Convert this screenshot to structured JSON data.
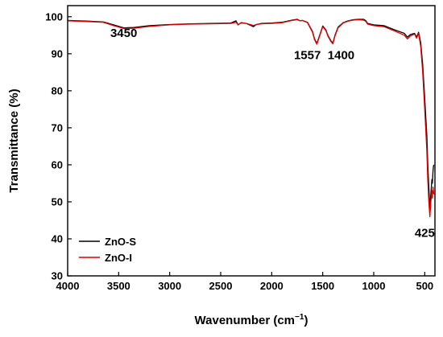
{
  "chart_data": {
    "type": "line",
    "xlabel": "Wavenumber (cm",
    "xlabel_sup": "−1",
    "xlabel_close": ")",
    "ylabel": "Transmittance (%)",
    "xlim": [
      4000,
      400
    ],
    "ylim": [
      30,
      103
    ],
    "x_ticks": [
      4000,
      3500,
      3000,
      2500,
      2000,
      1500,
      1000,
      500
    ],
    "y_ticks": [
      30,
      40,
      50,
      60,
      70,
      80,
      90,
      100
    ],
    "grid": false,
    "legend_position": "bottom-left",
    "annotations": [
      {
        "text": "3450",
        "x": 3450,
        "y": 94.5
      },
      {
        "text": "1557",
        "x": 1650,
        "y": 88.5
      },
      {
        "text": "1400",
        "x": 1320,
        "y": 88.5
      },
      {
        "text": "425",
        "x": 500,
        "y": 40.5
      }
    ],
    "series": [
      {
        "name": "ZnO-S",
        "color": "#000000",
        "x": [
          4000,
          3800,
          3650,
          3550,
          3450,
          3350,
          3200,
          3000,
          2800,
          2600,
          2400,
          2350,
          2330,
          2300,
          2250,
          2200,
          2180,
          2150,
          2100,
          2000,
          1900,
          1800,
          1750,
          1720,
          1700,
          1650,
          1600,
          1580,
          1557,
          1530,
          1500,
          1470,
          1450,
          1420,
          1400,
          1380,
          1350,
          1300,
          1250,
          1200,
          1150,
          1100,
          1080,
          1060,
          1000,
          900,
          800,
          700,
          670,
          640,
          600,
          580,
          560,
          540,
          520,
          500,
          480,
          470,
          460,
          450,
          440,
          430,
          425,
          420,
          415,
          410
        ],
        "y": [
          99.0,
          98.8,
          98.6,
          97.8,
          97.0,
          97.1,
          97.6,
          97.9,
          98.1,
          98.2,
          98.3,
          98.9,
          97.8,
          98.4,
          98.2,
          97.6,
          97.3,
          97.9,
          98.2,
          98.3,
          98.5,
          99.1,
          99.3,
          98.9,
          99.0,
          98.5,
          96.0,
          94.0,
          92.8,
          95.0,
          97.5,
          96.5,
          95.0,
          93.5,
          92.9,
          95.0,
          97.2,
          98.4,
          98.9,
          99.2,
          99.3,
          99.3,
          99.0,
          98.2,
          97.8,
          97.6,
          96.5,
          95.5,
          94.5,
          95.2,
          95.5,
          94.5,
          95.8,
          93.0,
          87.0,
          78.0,
          68.0,
          60.0,
          54.0,
          48.0,
          52.0,
          56.0,
          55.0,
          58.0,
          59.5,
          60.0
        ]
      },
      {
        "name": "ZnO-I",
        "color": "#e00000",
        "x": [
          4000,
          3800,
          3650,
          3550,
          3450,
          3350,
          3200,
          3000,
          2800,
          2600,
          2400,
          2350,
          2330,
          2300,
          2250,
          2200,
          2180,
          2150,
          2100,
          2000,
          1900,
          1800,
          1750,
          1720,
          1700,
          1650,
          1600,
          1580,
          1557,
          1530,
          1500,
          1470,
          1450,
          1420,
          1400,
          1380,
          1350,
          1300,
          1250,
          1200,
          1150,
          1100,
          1080,
          1060,
          1000,
          900,
          800,
          700,
          670,
          640,
          600,
          580,
          560,
          540,
          520,
          500,
          480,
          470,
          460,
          450,
          440,
          430,
          425,
          420,
          415,
          410
        ],
        "y": [
          98.9,
          98.7,
          98.5,
          97.6,
          96.8,
          96.9,
          97.4,
          97.8,
          98.0,
          98.1,
          98.2,
          98.5,
          97.9,
          98.3,
          98.2,
          97.8,
          97.6,
          97.9,
          98.1,
          98.2,
          98.4,
          99.0,
          99.2,
          98.9,
          99.0,
          98.4,
          95.8,
          93.8,
          92.6,
          94.8,
          97.3,
          96.3,
          94.8,
          93.3,
          92.7,
          94.8,
          97.0,
          98.3,
          98.8,
          99.1,
          99.2,
          99.1,
          98.8,
          98.0,
          97.6,
          97.3,
          96.2,
          95.0,
          94.0,
          94.8,
          95.3,
          94.2,
          95.5,
          92.0,
          85.0,
          75.0,
          64.0,
          56.0,
          50.0,
          46.0,
          50.0,
          53.0,
          51.0,
          54.0,
          53.0,
          52.0
        ]
      }
    ]
  }
}
